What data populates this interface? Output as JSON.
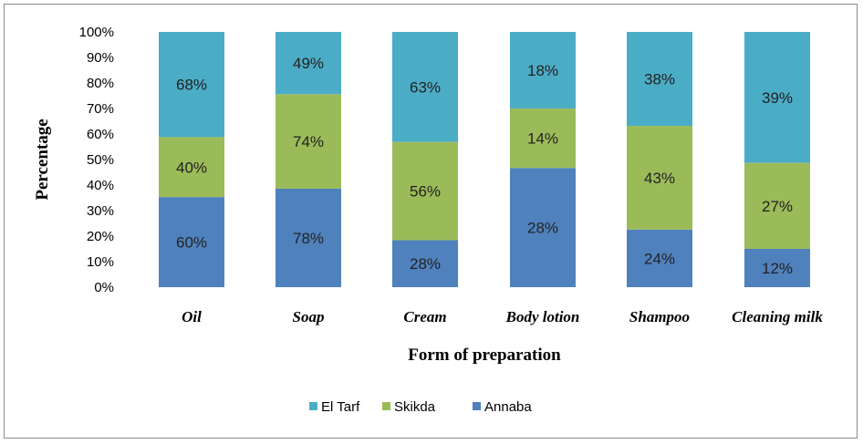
{
  "chart_data": {
    "type": "bar",
    "stacked": true,
    "xlabel": "Form of preparation",
    "ylabel": "Percentage",
    "ylim": [
      0,
      100
    ],
    "yticks": [
      "0%",
      "10%",
      "20%",
      "30%",
      "40%",
      "50%",
      "60%",
      "70%",
      "80%",
      "90%",
      "100%"
    ],
    "categories": [
      "Oil",
      "Soap",
      "Cream",
      "Body lotion",
      "Shampoo",
      "Cleaning milk"
    ],
    "legend_position": "bottom",
    "grid": false,
    "series": [
      {
        "name": "Annaba",
        "color": "#4F81BD",
        "values": [
          35.3,
          38.6,
          18.4,
          46.7,
          22.6,
          15.0
        ],
        "labels": [
          "60%",
          "78%",
          "28%",
          "28%",
          "24%",
          "12%"
        ]
      },
      {
        "name": "Skikda",
        "color": "#9BBB59",
        "values": [
          23.5,
          37.0,
          38.5,
          23.3,
          40.6,
          33.7
        ],
        "labels": [
          "40%",
          "74%",
          "56%",
          "14%",
          "43%",
          "27%"
        ]
      },
      {
        "name": "El Tarf",
        "color": "#4BACC6",
        "values": [
          41.2,
          24.4,
          43.1,
          30.0,
          36.8,
          51.3
        ],
        "labels": [
          "68%",
          "49%",
          "63%",
          "18%",
          "38%",
          "39%"
        ]
      }
    ],
    "legend_order": [
      "El Tarf",
      "Skikda",
      "Annaba"
    ],
    "legend_labels": [
      "El Tarf",
      "Skikda",
      "Annaba"
    ]
  }
}
